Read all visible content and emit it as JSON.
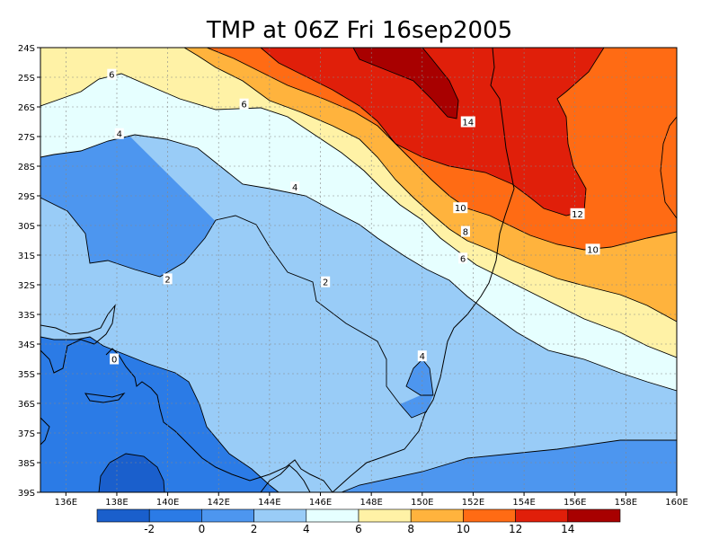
{
  "title": "TMP at 06Z Fri 16sep2005",
  "lat_labels": [
    "24S",
    "25S",
    "26S",
    "27S",
    "28S",
    "29S",
    "30S",
    "31S",
    "32S",
    "33S",
    "34S",
    "35S",
    "36S",
    "37S",
    "38S",
    "39S"
  ],
  "lon_labels": [
    "136E",
    "138E",
    "140E",
    "142E",
    "144E",
    "146E",
    "148E",
    "150E",
    "152E",
    "154E",
    "156E",
    "158E",
    "160E"
  ],
  "contour_labels": [
    {
      "text": "6",
      "lon": 137.8,
      "lat": -24.9
    },
    {
      "text": "6",
      "lon": 143.0,
      "lat": -25.9
    },
    {
      "text": "4",
      "lon": 138.1,
      "lat": -26.9
    },
    {
      "text": "4",
      "lon": 145.0,
      "lat": -28.7
    },
    {
      "text": "14",
      "lon": 151.8,
      "lat": -26.5
    },
    {
      "text": "10",
      "lon": 151.5,
      "lat": -29.4
    },
    {
      "text": "12",
      "lon": 156.1,
      "lat": -29.6
    },
    {
      "text": "8",
      "lon": 151.7,
      "lat": -30.2
    },
    {
      "text": "10",
      "lon": 156.7,
      "lat": -30.8
    },
    {
      "text": "6",
      "lon": 151.6,
      "lat": -31.1
    },
    {
      "text": "2",
      "lon": 140.0,
      "lat": -31.8
    },
    {
      "text": "2",
      "lon": 146.2,
      "lat": -31.9
    },
    {
      "text": "4",
      "lon": 150.0,
      "lat": -34.4
    },
    {
      "text": "0",
      "lon": 137.9,
      "lat": -34.5
    }
  ],
  "colorbar": {
    "labels": [
      "-2",
      "0",
      "2",
      "4",
      "6",
      "8",
      "10",
      "12",
      "14"
    ],
    "colors": [
      "#1a5fcc",
      "#2b7be6",
      "#4d96ef",
      "#99ccf7",
      "#e6ffff",
      "#fff2a6",
      "#ffb33d",
      "#ff6b14",
      "#e01f0a",
      "#a80000"
    ]
  },
  "colors": {
    "c_below_m2": "#1a5fcc",
    "c_m2_0": "#2b7be6",
    "c_0_2": "#4d96ef",
    "c_2_4": "#99ccf7",
    "c_4_6": "#e6ffff",
    "c_6_8": "#fff2a6",
    "c_8_10": "#ffb33d",
    "c_10_12": "#ff6b14",
    "c_12_14": "#e01f0a",
    "c_above_14": "#a80000"
  }
}
